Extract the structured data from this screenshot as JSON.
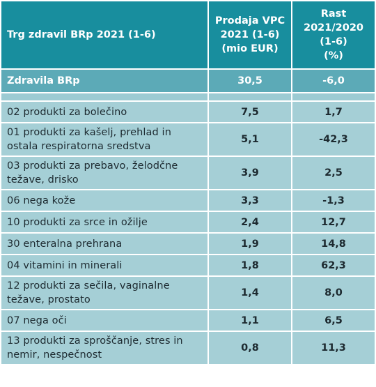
{
  "header": {
    "title": "Trg zdravil BRp 2021 (1-6)",
    "col_sales": [
      "Prodaja VPC",
      "2021 (1-6)",
      "(mio EUR)"
    ],
    "col_growth": [
      "Rast",
      "2021/2020",
      "(1-6)",
      "(%)"
    ]
  },
  "total": {
    "label": "Zdravila BRp",
    "sales": "30,5",
    "growth": "-6,0"
  },
  "rows": [
    {
      "label": "02 produkti za bolečino",
      "sales": "7,5",
      "growth": "1,7"
    },
    {
      "label": "01 produkti za kašelj, prehlad in ostala respiratorna sredstva",
      "sales": "5,1",
      "growth": "-42,3"
    },
    {
      "label": "03 produkti za prebavo, želodčne težave, drisko",
      "sales": "3,9",
      "growth": "2,5"
    },
    {
      "label": "06 nega kože",
      "sales": "3,3",
      "growth": "-1,3"
    },
    {
      "label": "10 produkti za srce in ožilje",
      "sales": "2,4",
      "growth": "12,7"
    },
    {
      "label": "30 enteralna prehrana",
      "sales": "1,9",
      "growth": "14,8"
    },
    {
      "label": "04 vitamini in minerali",
      "sales": "1,8",
      "growth": "62,3"
    },
    {
      "label": "12 produkti za sečila, vaginalne težave, prostato",
      "sales": "1,4",
      "growth": "8,0"
    },
    {
      "label": "07 nega oči",
      "sales": "1,1",
      "growth": "6,5"
    },
    {
      "label": "13 produkti za sproščanje, stres in nemir, nespečnost",
      "sales": "0,8",
      "growth": "11,3"
    }
  ]
}
